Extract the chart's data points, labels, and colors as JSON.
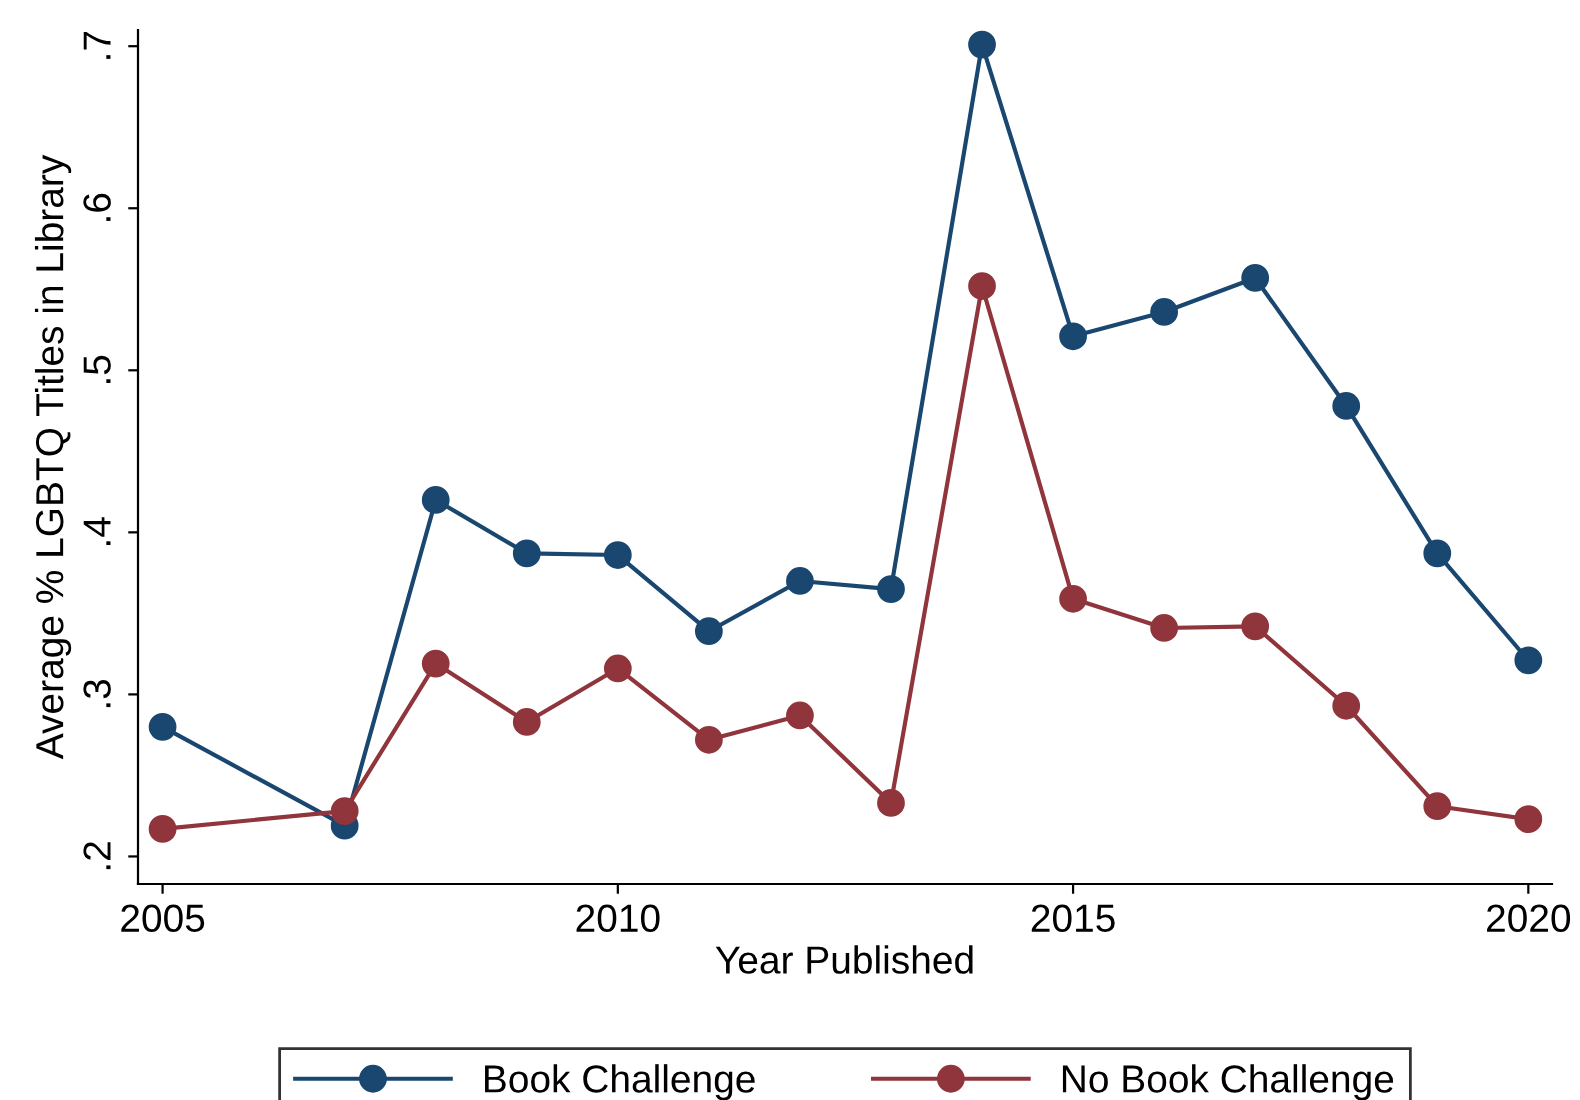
{
  "chart_data": {
    "type": "line",
    "xlabel": "Year Published",
    "ylabel": "Average % LGBTQ Titles in Library",
    "x": [
      2005,
      2007,
      2008,
      2009,
      2010,
      2011,
      2012,
      2013,
      2014,
      2015,
      2016,
      2017,
      2018,
      2019,
      2020
    ],
    "series": [
      {
        "name": "Book Challenge",
        "color": "#1a476f",
        "values": [
          0.28,
          0.219,
          0.42,
          0.387,
          0.386,
          0.339,
          0.37,
          0.365,
          0.701,
          0.521,
          0.536,
          0.557,
          0.478,
          0.387,
          0.321
        ]
      },
      {
        "name": "No Book Challenge",
        "color": "#90353b",
        "values": [
          0.217,
          0.228,
          0.319,
          0.283,
          0.316,
          0.272,
          0.287,
          0.233,
          0.552,
          0.359,
          0.341,
          0.342,
          0.293,
          0.231,
          0.223
        ]
      }
    ],
    "xlim": [
      2004.73,
      2020.26
    ],
    "ylim": [
      0.183,
      0.71
    ],
    "xticks": [
      2005,
      2010,
      2015,
      2020
    ],
    "yticks": [
      {
        "value": 0.2,
        "label": ".2"
      },
      {
        "value": 0.3,
        "label": ".3"
      },
      {
        "value": 0.4,
        "label": ".4"
      },
      {
        "value": 0.5,
        "label": ".5"
      },
      {
        "value": 0.6,
        "label": ".6"
      },
      {
        "value": 0.7,
        "label": ".7"
      }
    ],
    "marker": "circle",
    "line_style": "solid",
    "grid": false,
    "legend": "bottom"
  }
}
